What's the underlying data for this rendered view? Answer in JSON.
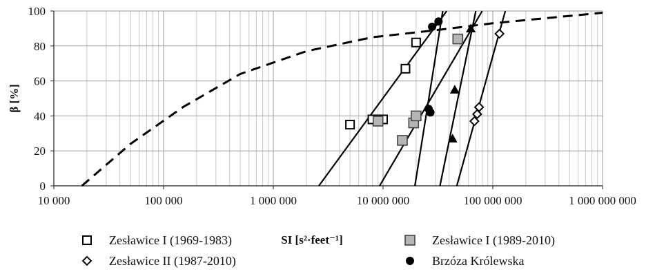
{
  "chart_data": {
    "type": "scatter",
    "xlabel": "SI [s²·feet⁻¹]",
    "ylabel": "β [%]",
    "x_scale": "log",
    "xlim": [
      10000,
      1000000000
    ],
    "ylim": [
      0,
      100
    ],
    "grid": true,
    "legend_position": "bottom",
    "x_ticks": [
      {
        "value": 10000,
        "label": "10 000"
      },
      {
        "value": 100000,
        "label": "100 000"
      },
      {
        "value": 1000000,
        "label": "1 000 000"
      },
      {
        "value": 10000000,
        "label": "10 000 000"
      },
      {
        "value": 100000000,
        "label": "100 000 000"
      },
      {
        "value": 1000000000,
        "label": "1 000 000 000"
      }
    ],
    "y_ticks": [
      {
        "value": 0,
        "label": "0"
      },
      {
        "value": 20,
        "label": "20"
      },
      {
        "value": 40,
        "label": "40"
      },
      {
        "value": 60,
        "label": "60"
      },
      {
        "value": 80,
        "label": "80"
      },
      {
        "value": 100,
        "label": "100"
      }
    ],
    "series": [
      {
        "name": "Zesławice I (1969-1983)",
        "marker": "open-square",
        "points": [
          {
            "x": 5000000,
            "y": 35
          },
          {
            "x": 8000000,
            "y": 38
          },
          {
            "x": 9000000,
            "y": 38
          },
          {
            "x": 10000000,
            "y": 38
          },
          {
            "x": 16000000,
            "y": 67
          },
          {
            "x": 20000000,
            "y": 82
          }
        ]
      },
      {
        "name": "Zesławice I (1989-2010)",
        "marker": "gray-square",
        "points": [
          {
            "x": 9000000,
            "y": 37
          },
          {
            "x": 15000000,
            "y": 26
          },
          {
            "x": 19000000,
            "y": 36
          },
          {
            "x": 20000000,
            "y": 40
          },
          {
            "x": 48000000,
            "y": 84
          }
        ]
      },
      {
        "name": "Zesławice II (1987-2010)",
        "marker": "open-diamond",
        "points": [
          {
            "x": 68000000,
            "y": 37
          },
          {
            "x": 72000000,
            "y": 41
          },
          {
            "x": 75000000,
            "y": 45
          },
          {
            "x": 115000000,
            "y": 87
          }
        ]
      },
      {
        "name": "Brzóza Królewska",
        "marker": "filled-circle",
        "points": [
          {
            "x": 26000000,
            "y": 44
          },
          {
            "x": 27000000,
            "y": 42
          },
          {
            "x": 28000000,
            "y": 91
          },
          {
            "x": 32000000,
            "y": 94
          }
        ]
      },
      {
        "name": "",
        "marker": "filled-triangle",
        "points": [
          {
            "x": 43000000,
            "y": 27
          },
          {
            "x": 45000000,
            "y": 55
          },
          {
            "x": 63000000,
            "y": 90
          }
        ]
      }
    ],
    "fit_lines": [
      {
        "points": [
          {
            "x": 2600000,
            "y": 0
          },
          {
            "x": 38000000,
            "y": 100
          }
        ]
      },
      {
        "points": [
          {
            "x": 9300000,
            "y": 0
          },
          {
            "x": 80000000,
            "y": 100
          }
        ]
      },
      {
        "points": [
          {
            "x": 19500000,
            "y": 0
          },
          {
            "x": 35000000,
            "y": 100
          }
        ]
      },
      {
        "points": [
          {
            "x": 33000000,
            "y": 0
          },
          {
            "x": 70000000,
            "y": 100
          }
        ]
      },
      {
        "points": [
          {
            "x": 47000000,
            "y": 0
          },
          {
            "x": 130000000,
            "y": 100
          }
        ]
      }
    ],
    "dashed_curve": {
      "points": [
        {
          "x": 18000,
          "y": 0
        },
        {
          "x": 50000,
          "y": 24
        },
        {
          "x": 150000,
          "y": 45
        },
        {
          "x": 500000,
          "y": 64
        },
        {
          "x": 2000000,
          "y": 77
        },
        {
          "x": 8000000,
          "y": 85
        },
        {
          "x": 30000000,
          "y": 89
        },
        {
          "x": 100000000,
          "y": 93
        },
        {
          "x": 1000000000,
          "y": 99
        }
      ]
    }
  }
}
